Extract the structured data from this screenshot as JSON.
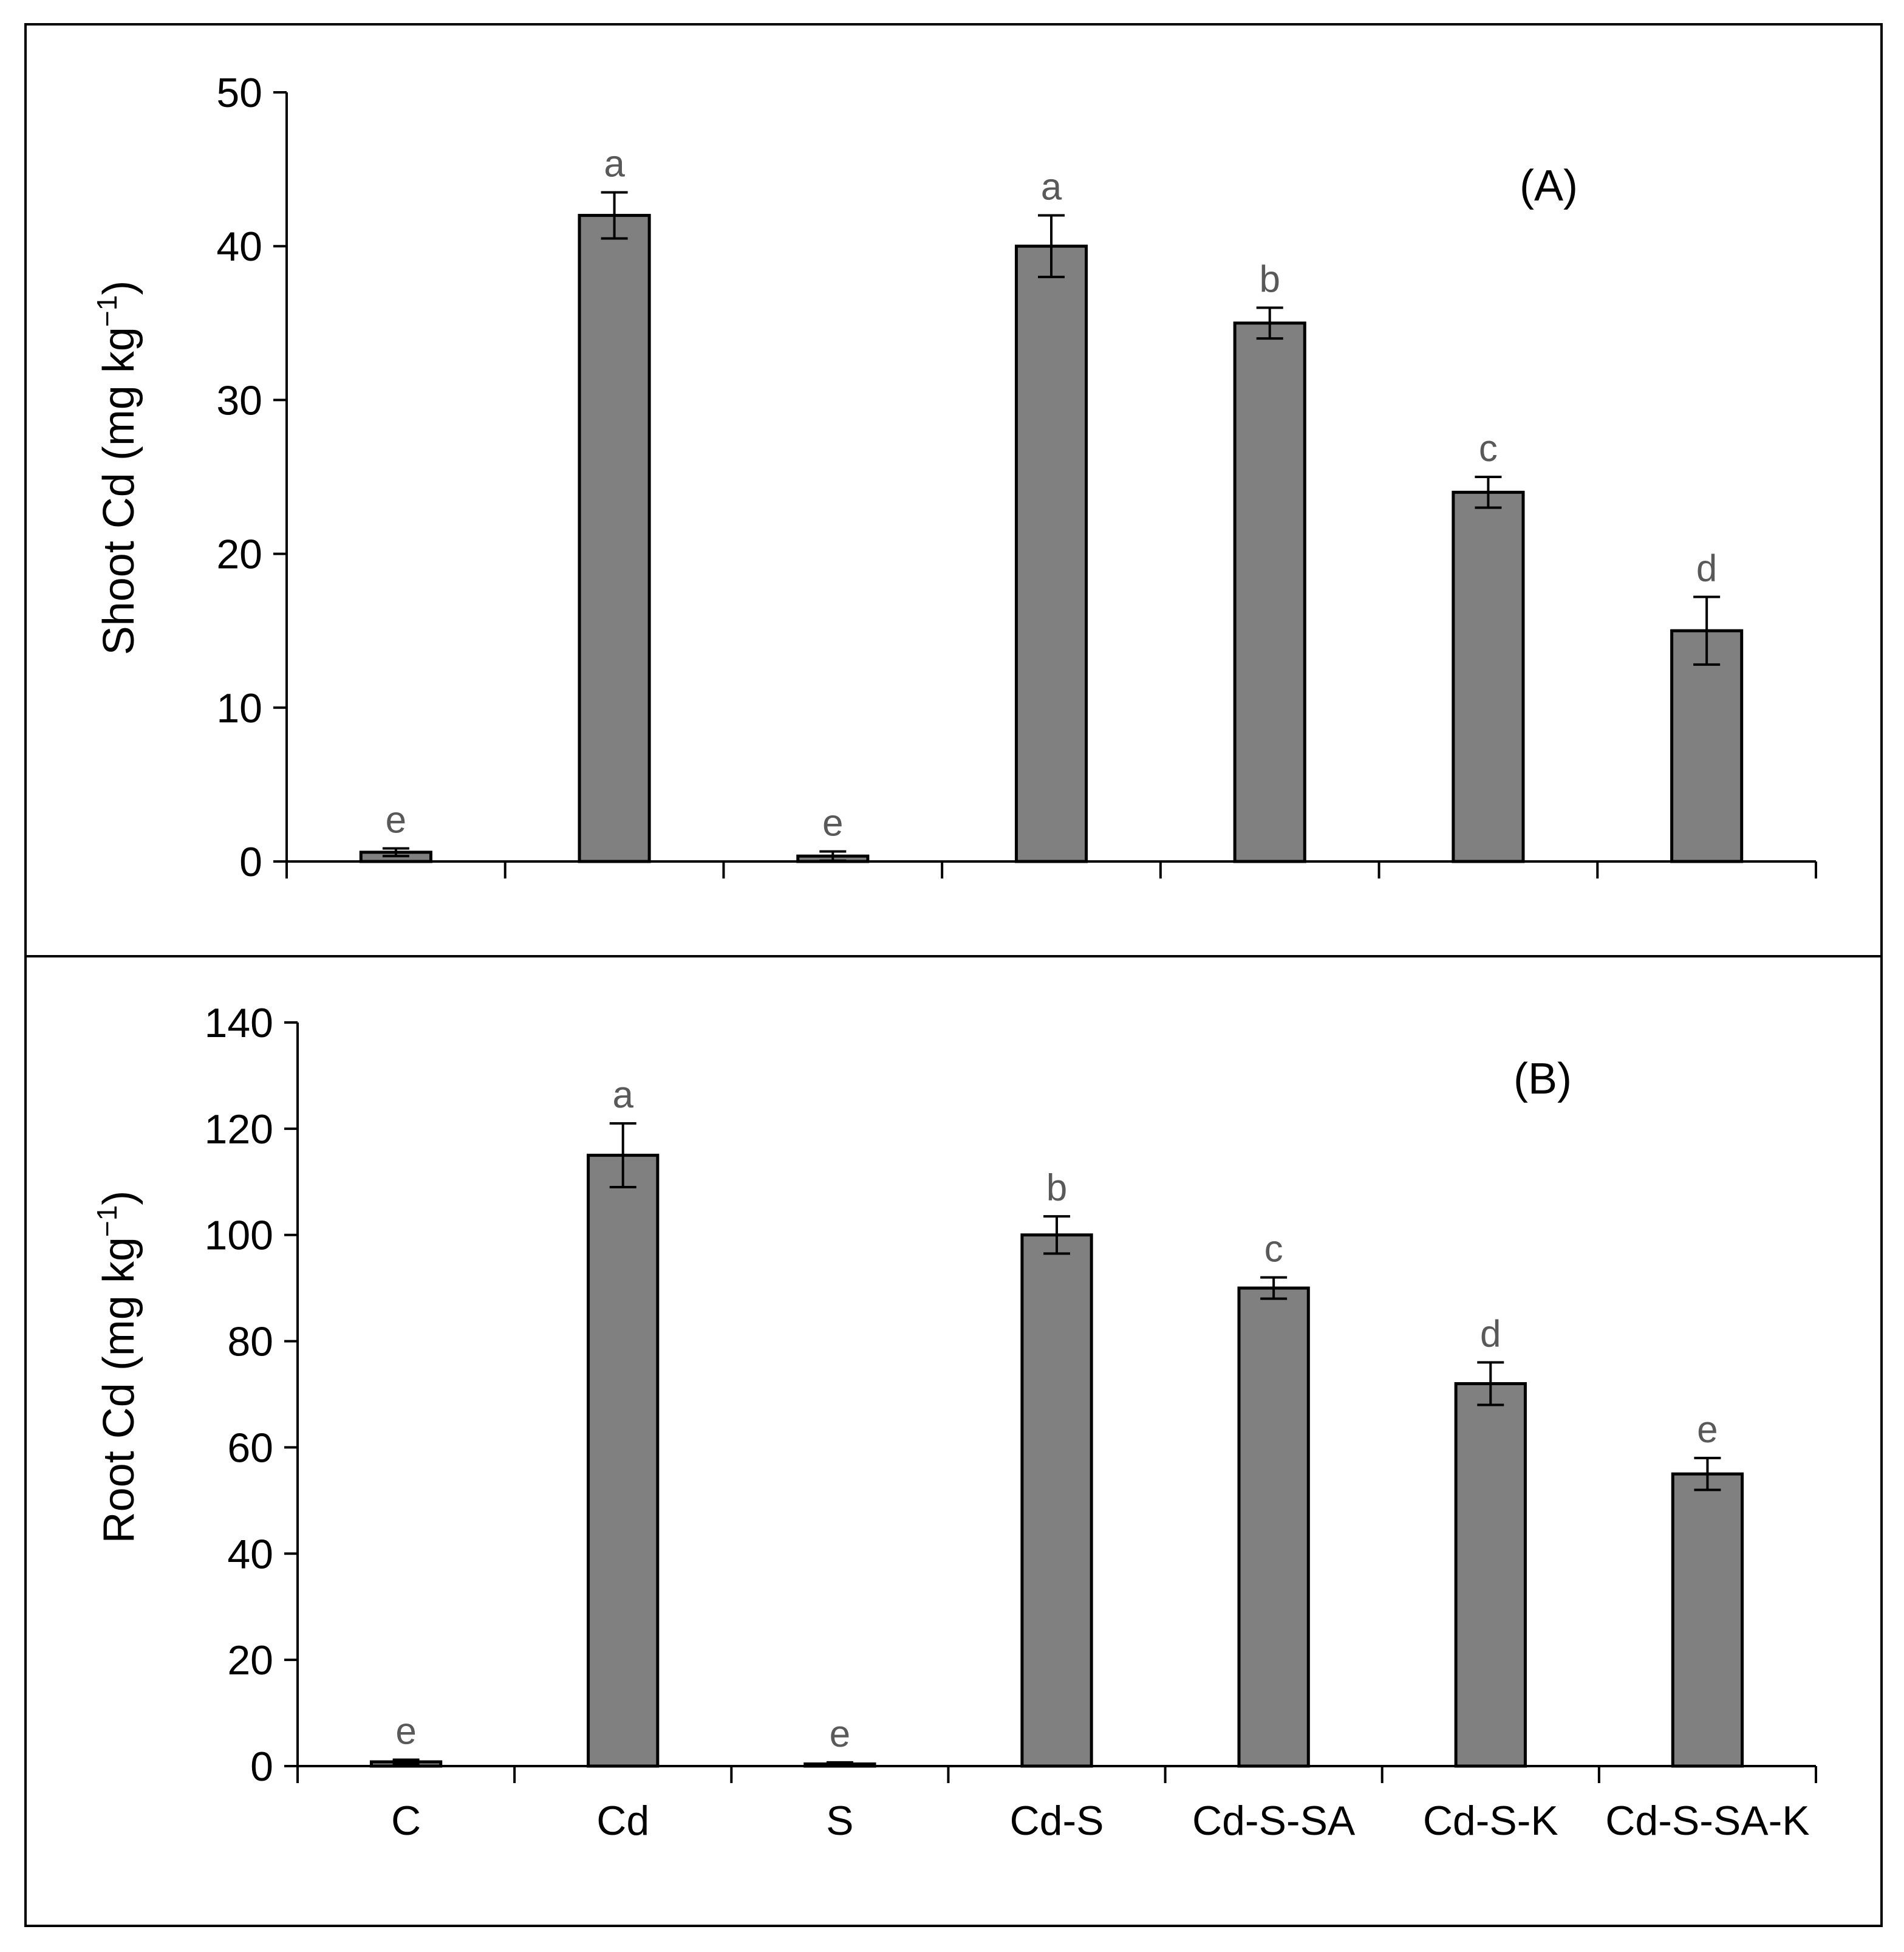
{
  "chart_data": [
    {
      "type": "bar",
      "panel_label": "(A)",
      "ylabel": "Shoot Cd (mg kg",
      "ylabel_superscript": "−1",
      "ylabel_close": ")",
      "categories": [
        "C",
        "Cd",
        "S",
        "Cd-S",
        "Cd-S-SA",
        "Cd-S-K",
        "Cd-S-SA-K"
      ],
      "values": [
        0.6,
        42,
        0.35,
        40,
        35,
        24,
        15
      ],
      "errors": [
        0.25,
        1.5,
        0.3,
        2.0,
        1.0,
        1.0,
        2.2
      ],
      "letters": [
        "e",
        "a",
        "e",
        "a",
        "b",
        "c",
        "d"
      ],
      "ylim": [
        0,
        50
      ],
      "yticks": [
        0,
        10,
        20,
        30,
        40,
        50
      ],
      "ytick_labels": [
        "0",
        "10",
        "20",
        "30",
        "40",
        "50"
      ],
      "show_xtick_labels": false
    },
    {
      "type": "bar",
      "panel_label": "(B)",
      "ylabel": "Root Cd (mg kg",
      "ylabel_superscript": "−1",
      "ylabel_close": ")",
      "categories": [
        "C",
        "Cd",
        "S",
        "Cd-S",
        "Cd-S-SA",
        "Cd-S-K",
        "Cd-S-SA-K"
      ],
      "values": [
        0.8,
        115,
        0.4,
        100,
        90,
        72,
        55
      ],
      "errors": [
        0.4,
        6,
        0.3,
        3.5,
        2,
        4,
        3
      ],
      "letters": [
        "e",
        "a",
        "e",
        "b",
        "c",
        "d",
        "e"
      ],
      "ylim": [
        0,
        140
      ],
      "yticks": [
        0,
        20,
        40,
        60,
        80,
        100,
        120,
        140
      ],
      "ytick_labels": [
        "0",
        "20",
        "40",
        "60",
        "80",
        "100",
        "120",
        "140"
      ],
      "show_xtick_labels": true
    }
  ],
  "colors": {
    "bar_fill": "#808080",
    "bar_stroke": "#000000",
    "letter": "#595959",
    "axis": "#000000",
    "frame": "#000000"
  }
}
